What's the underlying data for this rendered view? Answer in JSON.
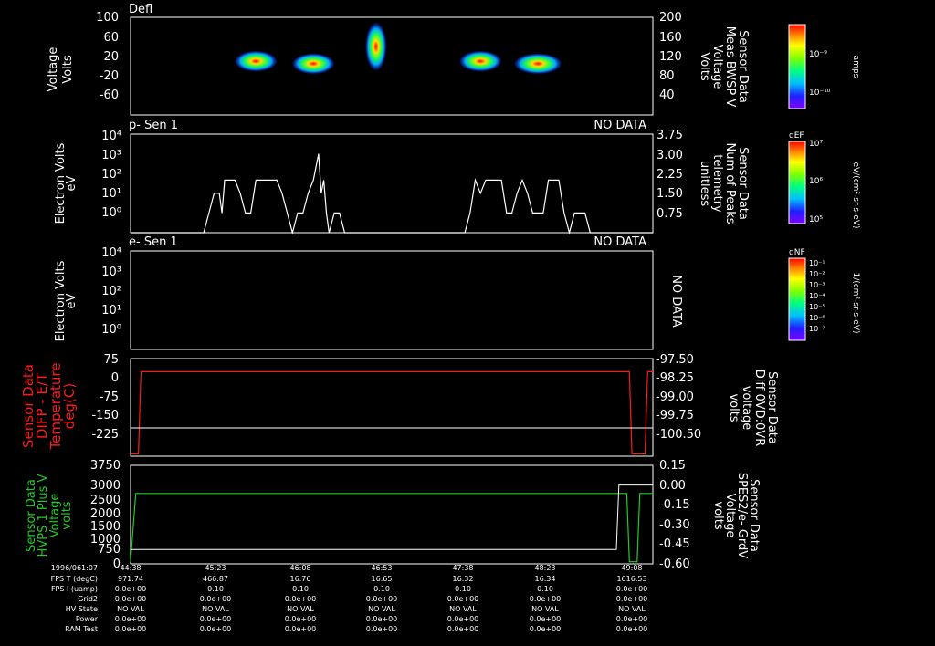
{
  "colors": {
    "background": "#000000",
    "axis": "#ffffff",
    "temp": "#ff1a1a",
    "volt": "#22cc22"
  },
  "panels": {
    "p1": {
      "title": "Defl",
      "left_label": [
        "Voltage",
        "Volts"
      ],
      "right_label": [
        "Sensor Data",
        "Meas BWSP V",
        "Voltage",
        "Volts"
      ],
      "yticks": [
        "100",
        "60",
        "20",
        "-20",
        "-60"
      ],
      "rticks": [
        "200",
        "160",
        "120",
        "80",
        "40"
      ],
      "colorbar_ticks": [
        "10⁻⁹",
        "10⁻¹⁰"
      ],
      "colorbar_label": "amps"
    },
    "p2": {
      "title": "p- Sen 1",
      "status": "NO DATA",
      "left_label": [
        "Electron Volts",
        "eV"
      ],
      "right_label": [
        "Sensor Data",
        "Num of Peaks",
        "telemetry",
        "unitless"
      ],
      "yticks": [
        "10⁴",
        "10³",
        "10²",
        "10¹",
        "10⁰"
      ],
      "rticks": [
        "3.75",
        "3.00",
        "2.25",
        "1.50",
        "0.75"
      ],
      "colorbar_title": "dEF",
      "colorbar_ticks": [
        "10⁷",
        "10⁶",
        "10⁵"
      ],
      "colorbar_label": "eV/(cm²-sr-s-eV)"
    },
    "p3": {
      "title": "e- Sen 1",
      "status": "NO DATA",
      "side_status": "NO DATA",
      "left_label": [
        "Electron Volts",
        "eV"
      ],
      "yticks": [
        "10⁴",
        "10³",
        "10²",
        "10¹",
        "10⁰"
      ],
      "colorbar_title": "dNF",
      "colorbar_ticks": [
        "10⁻¹",
        "10⁻²",
        "10⁻³",
        "10⁻⁴",
        "10⁻⁵",
        "10⁻⁶",
        "10⁻⁷"
      ],
      "colorbar_label": "1/(cm²-sr-s-eV)"
    },
    "p4": {
      "left_label": [
        "Sensor Data",
        "DIFP - E/T",
        "Temperature",
        "deg(C)"
      ],
      "right_label": [
        "Sensor Data",
        "Diff 0VD:0VR",
        "voltage",
        "volts"
      ],
      "yticks": [
        "75",
        "0",
        "-75",
        "-150",
        "-225"
      ],
      "rticks": [
        "-97.50",
        "-98.25",
        "-99.00",
        "-99.75",
        "-100.50"
      ]
    },
    "p5": {
      "left_label": [
        "Sensor Data",
        "HVPS 1 Plus V",
        "Voltage",
        "volts"
      ],
      "right_label": [
        "Sensor Data",
        "SPES2/e- GrdV",
        "Voltage",
        "volts"
      ],
      "yticks": [
        "3750",
        "3000",
        "2500",
        "2000",
        "1500",
        "1000",
        "750",
        "0"
      ],
      "rticks": [
        "0.15",
        "0.00",
        "-0.15",
        "-0.30",
        "-0.45",
        "-0.60"
      ]
    }
  },
  "footer": {
    "row_labels": [
      "1996/061:07",
      "FPS T (degC)",
      "FPS I (uamp)",
      "Grid2",
      "HV State",
      "Power",
      "RAM Test"
    ],
    "columns": [
      [
        "44:38",
        "971.74",
        "0.0e+00",
        "0.0e+00",
        "NO VAL",
        "0.0e+00",
        "0.0e+00"
      ],
      [
        "45:23",
        "466.87",
        "0.10",
        "0.0e+00",
        "NO VAL",
        "0.0e+00",
        "0.0e+00"
      ],
      [
        "46:08",
        "16.76",
        "0.10",
        "0.0e+00",
        "NO VAL",
        "0.0e+00",
        "0.0e+00"
      ],
      [
        "46:53",
        "16.65",
        "0.10",
        "0.0e+00",
        "NO VAL",
        "0.0e+00",
        "0.0e+00"
      ],
      [
        "47:38",
        "16.32",
        "0.10",
        "0.0e+00",
        "NO VAL",
        "0.0e+00",
        "0.0e+00"
      ],
      [
        "48:23",
        "16.34",
        "0.10",
        "0.0e+00",
        "NO VAL",
        "0.0e+00",
        "0.0e+00"
      ],
      [
        "49:08",
        "1616.53",
        "0.0e+00",
        "0.0e+00",
        "NO VAL",
        "0.0e+00",
        "0.0e+00"
      ]
    ]
  },
  "chart_data": [
    {
      "type": "heatmap",
      "title": "Defl",
      "ylim": [
        -100,
        100
      ],
      "blobs": [
        {
          "t": 0.24,
          "y": 10,
          "w": 0.08,
          "h": 30
        },
        {
          "t": 0.35,
          "y": 5,
          "w": 0.08,
          "h": 30
        },
        {
          "t": 0.47,
          "y": 40,
          "w": 0.04,
          "h": 70
        },
        {
          "t": 0.67,
          "y": 10,
          "w": 0.08,
          "h": 30
        },
        {
          "t": 0.78,
          "y": 5,
          "w": 0.09,
          "h": 30
        }
      ]
    },
    {
      "type": "line",
      "title": "p- Sen 1",
      "ylim": [
        0,
        3.75
      ],
      "series": [
        {
          "values": [
            [
              0.0,
              0
            ],
            [
              0.14,
              0
            ],
            [
              0.15,
              0.75
            ],
            [
              0.16,
              1.5
            ],
            [
              0.17,
              1.5
            ],
            [
              0.175,
              0.75
            ],
            [
              0.18,
              2.0
            ],
            [
              0.2,
              2.0
            ],
            [
              0.21,
              1.5
            ],
            [
              0.22,
              0.75
            ],
            [
              0.23,
              0.75
            ],
            [
              0.24,
              2.0
            ],
            [
              0.28,
              2.0
            ],
            [
              0.29,
              1.5
            ],
            [
              0.3,
              0.75
            ],
            [
              0.31,
              0
            ],
            [
              0.32,
              0.75
            ],
            [
              0.33,
              0.75
            ],
            [
              0.34,
              1.5
            ],
            [
              0.35,
              2.0
            ],
            [
              0.36,
              3.0
            ],
            [
              0.365,
              1.5
            ],
            [
              0.37,
              2.0
            ],
            [
              0.375,
              0.75
            ],
            [
              0.38,
              0
            ],
            [
              0.39,
              0.75
            ],
            [
              0.4,
              0.75
            ],
            [
              0.41,
              0
            ],
            [
              0.64,
              0
            ],
            [
              0.65,
              0.75
            ],
            [
              0.66,
              2.0
            ],
            [
              0.67,
              1.5
            ],
            [
              0.68,
              2.0
            ],
            [
              0.71,
              2.0
            ],
            [
              0.72,
              0.75
            ],
            [
              0.73,
              0.75
            ],
            [
              0.74,
              1.5
            ],
            [
              0.75,
              2.0
            ],
            [
              0.76,
              1.5
            ],
            [
              0.77,
              0.75
            ],
            [
              0.79,
              0.75
            ],
            [
              0.8,
              2.0
            ],
            [
              0.82,
              2.0
            ],
            [
              0.83,
              0.75
            ],
            [
              0.84,
              0
            ],
            [
              0.85,
              0.75
            ],
            [
              0.87,
              0.75
            ],
            [
              0.88,
              0
            ],
            [
              1.0,
              0
            ]
          ]
        }
      ]
    },
    {
      "type": "line",
      "title": "e- Sen 1",
      "series": []
    },
    {
      "type": "line",
      "ylim": [
        -260,
        75
      ],
      "series": [
        {
          "values": [
            [
              0.0,
              -252
            ],
            [
              0.015,
              -252
            ],
            [
              0.02,
              30
            ],
            [
              0.955,
              30
            ],
            [
              0.96,
              -252
            ],
            [
              0.985,
              -252
            ],
            [
              0.99,
              30
            ],
            [
              1.0,
              30
            ]
          ]
        },
        {
          "values": [
            [
              0.0,
              -163
            ],
            [
              1.0,
              -163
            ]
          ]
        }
      ]
    },
    {
      "type": "line",
      "ylim": [
        0,
        3750
      ],
      "series": [
        {
          "values": [
            [
              0.0,
              80
            ],
            [
              0.01,
              2680
            ],
            [
              0.95,
              2680
            ],
            [
              0.955,
              80
            ],
            [
              0.97,
              80
            ],
            [
              0.975,
              2680
            ],
            [
              1.0,
              2680
            ]
          ]
        },
        {
          "values": [
            [
              0.0,
              550
            ],
            [
              0.93,
              550
            ],
            [
              0.935,
              3000
            ],
            [
              1.0,
              3000
            ]
          ]
        }
      ]
    }
  ]
}
